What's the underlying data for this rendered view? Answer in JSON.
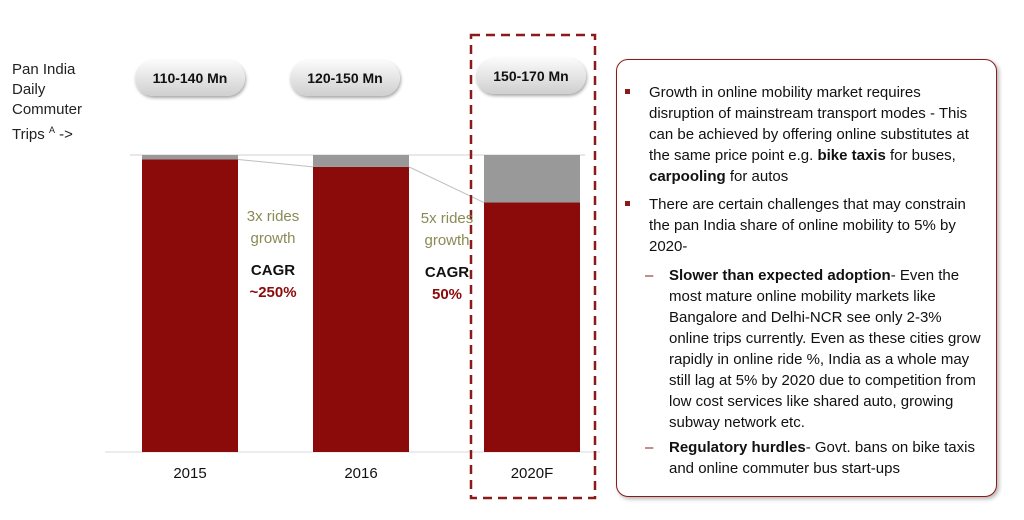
{
  "chart_data": {
    "type": "bar",
    "stacked": true,
    "categories": [
      "2015",
      "2016",
      "2020F"
    ],
    "series": [
      {
        "values": [
          98.5,
          96,
          84
        ]
      },
      {
        "values": [
          1.5,
          4,
          16
        ]
      }
    ],
    "ylim": [
      0,
      100
    ],
    "ylabel": "Pan India Daily Commuter Trips",
    "ylabel_sup": "A",
    "ylabel_suffix": "->",
    "ylabel_lines": [
      "Pan India",
      "Daily",
      "Commuter"
    ],
    "totals": [
      "110-140 Mn",
      "120-150 Mn",
      "150-170 Mn"
    ],
    "highlighted_category": "2020F",
    "annotations": [
      {
        "growth": "3x rides growth",
        "growth_lines": [
          "3x rides",
          "growth"
        ],
        "cagr_label": "CAGR",
        "cagr_value": "~250%"
      },
      {
        "growth": "5x rides growth",
        "growth_lines": [
          "5x rides",
          "growth"
        ],
        "cagr_label": "CAGR",
        "cagr_value": "50%"
      }
    ],
    "colors": {
      "base": "#8b0a0a",
      "top": "#999999",
      "highlight_border": "#8b1a1a"
    }
  },
  "panel": {
    "bullets": [
      {
        "text_parts": [
          {
            "t": "Growth in online mobility market requires disruption of mainstream transport modes - This can be achieved by offering online substitutes at the same price point e.g. ",
            "b": false
          },
          {
            "t": "bike taxis",
            "b": true
          },
          {
            "t": " for buses, ",
            "b": false
          },
          {
            "t": "carpooling",
            "b": true
          },
          {
            "t": " for autos",
            "b": false
          }
        ]
      },
      {
        "text_parts": [
          {
            "t": "There are certain challenges that may constrain the pan India share of online mobility to 5% by 2020-",
            "b": false
          }
        ],
        "sub": [
          {
            "bold": "Slower than expected adoption",
            "rest": "- Even the most mature online mobility markets like Bangalore and Delhi-NCR see only 2-3% online trips currently. Even as these cities grow rapidly in online ride %, India as a whole may still lag at 5% by 2020 due to competition from low cost services like shared auto, growing subway network etc."
          },
          {
            "bold": "Regulatory hurdles",
            "rest": "- Govt. bans on bike taxis and online commuter bus start-ups"
          }
        ]
      }
    ],
    "accent": "#8b1a1a"
  }
}
